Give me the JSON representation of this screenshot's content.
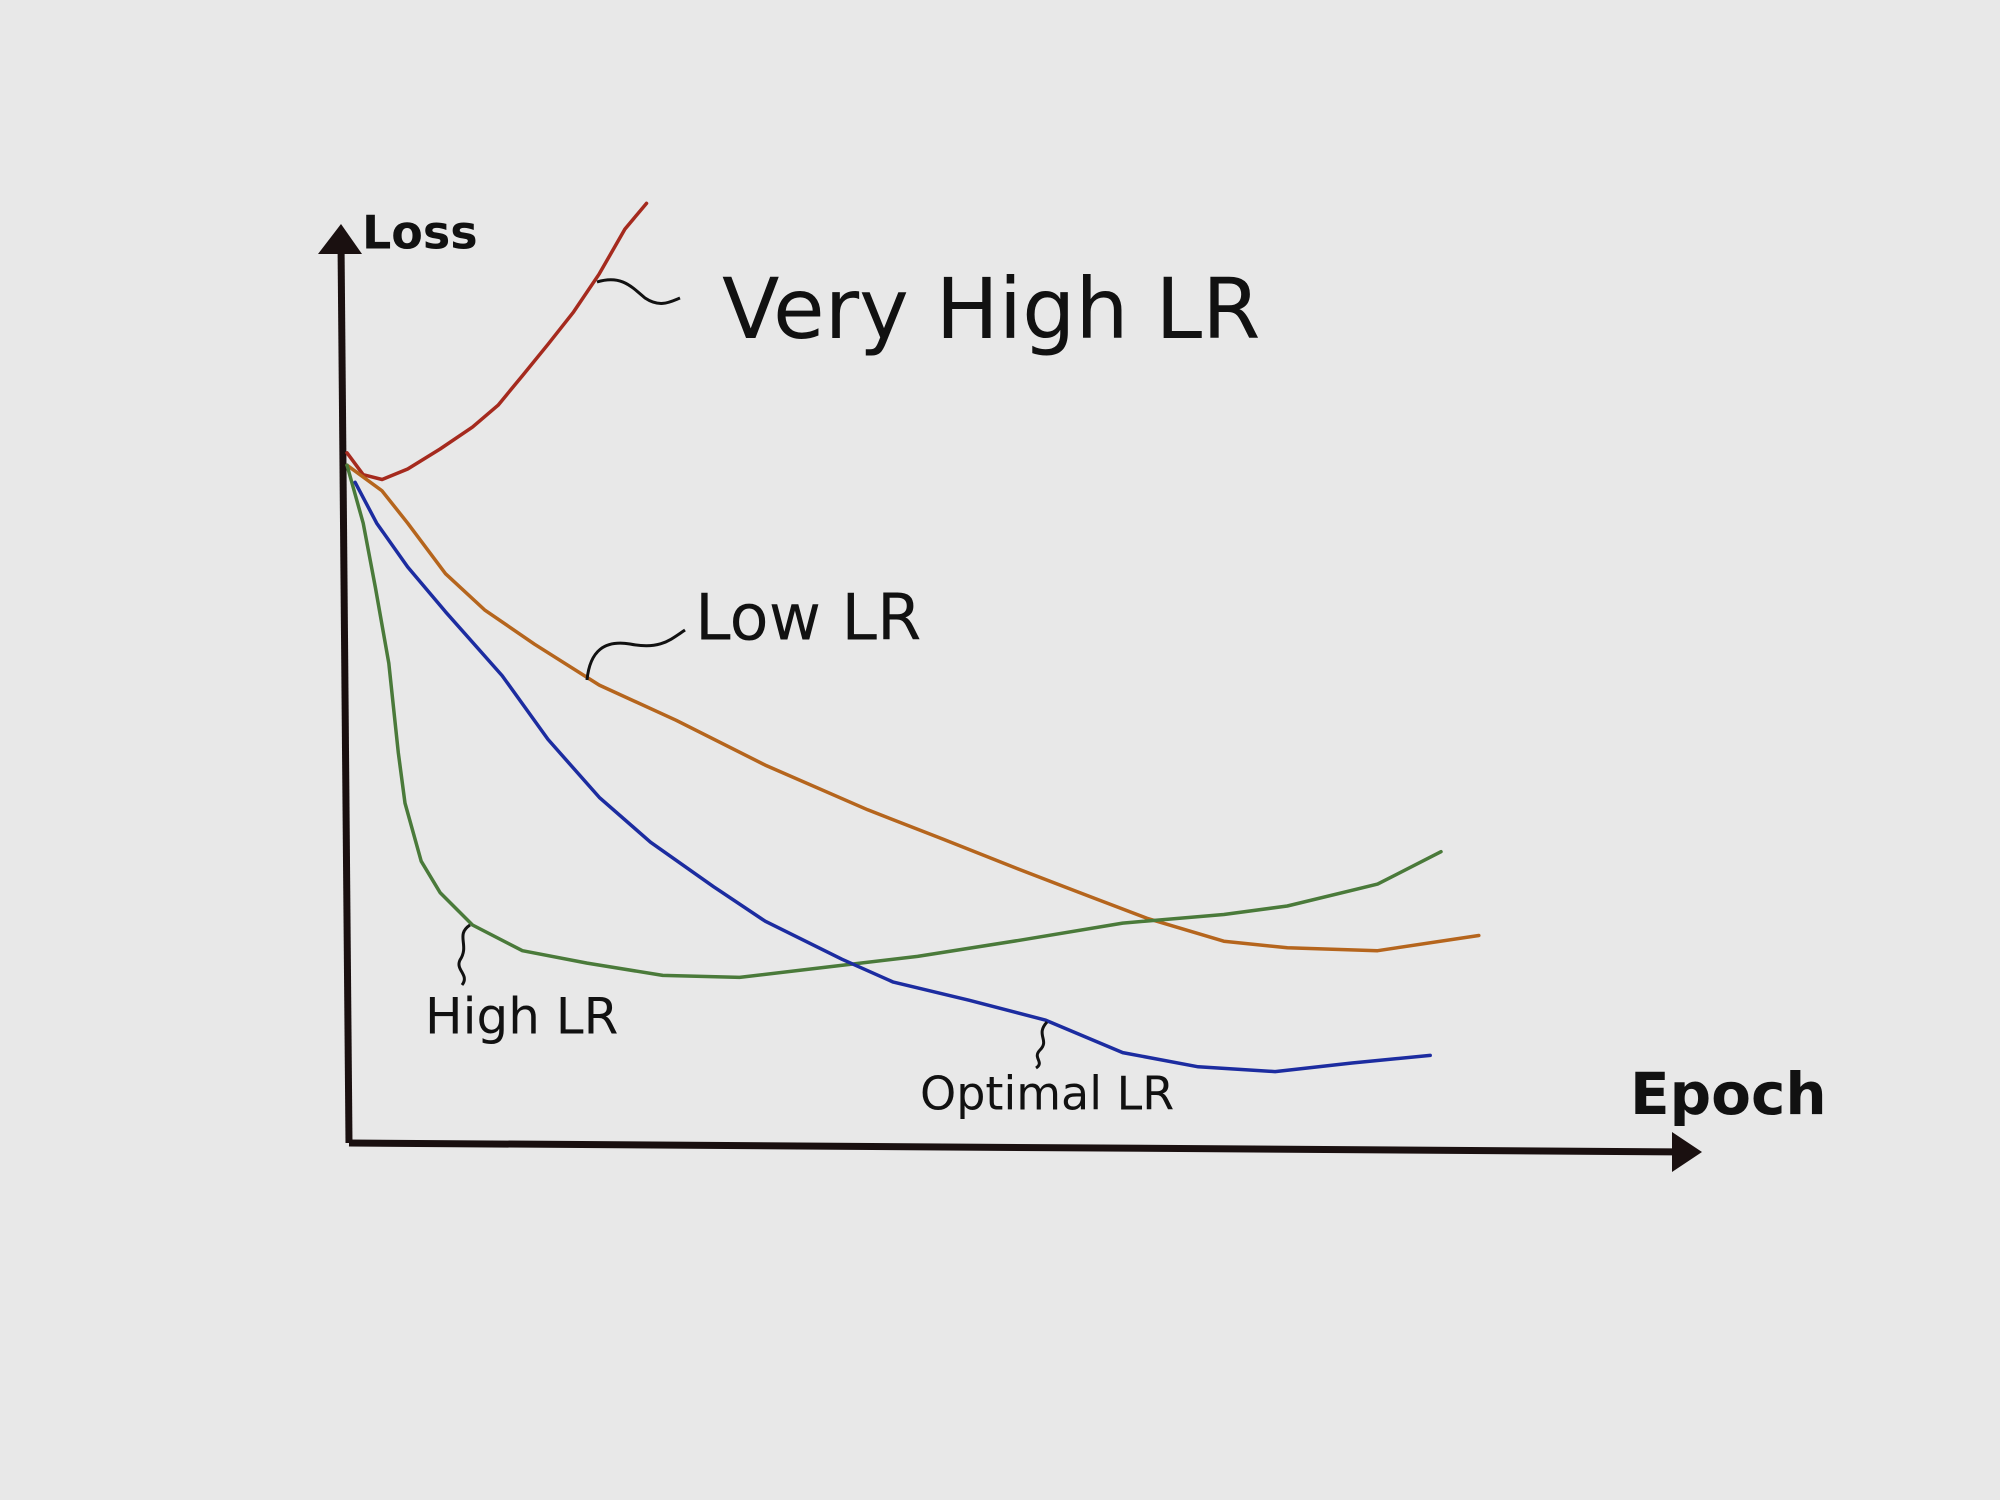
{
  "chart_data": {
    "type": "line",
    "x_label": "Epoch",
    "y_label": "Loss",
    "xlim": [
      0,
      100
    ],
    "ylim": [
      0,
      100
    ],
    "series": [
      {
        "name": "Very High LR",
        "color": "#a52a1e",
        "x": [
          0,
          1.2,
          2.6,
          4.5,
          6.9,
          9.3,
          11.2,
          13.0,
          14.9,
          16.8,
          18.7,
          20.6,
          22.2
        ],
        "values": [
          72.5,
          70.2,
          69.7,
          70.8,
          72.9,
          75.2,
          77.5,
          80.6,
          83.9,
          87.3,
          91.3,
          96.0,
          98.7
        ]
      },
      {
        "name": "Low LR",
        "color": "#b5651d",
        "x": [
          0,
          2.6,
          4.5,
          7.3,
          10.2,
          13.9,
          18.7,
          24.4,
          31.0,
          38.6,
          44.2,
          49.9,
          55.6,
          59.3,
          65.0,
          69.7,
          76.4,
          83.9
        ],
        "values": [
          71.2,
          68.5,
          65.1,
          59.8,
          56.0,
          52.4,
          48.1,
          44.4,
          39.7,
          35.0,
          31.9,
          28.7,
          25.6,
          23.6,
          21.2,
          20.5,
          20.2,
          21.8
        ]
      },
      {
        "name": "High LR",
        "color": "#4a7a3a",
        "x": [
          0,
          1.2,
          2.1,
          3.1,
          3.8,
          4.3,
          5.5,
          6.9,
          9.3,
          13.0,
          17.8,
          23.4,
          29.1,
          35.7,
          42.3,
          49.9,
          57.5,
          65.0,
          69.7,
          76.4,
          81.1
        ],
        "values": [
          71.2,
          65.1,
          58.4,
          50.4,
          41.0,
          35.7,
          29.6,
          26.3,
          22.9,
          20.2,
          18.9,
          17.6,
          17.4,
          18.5,
          19.6,
          21.3,
          23.1,
          24.0,
          24.9,
          27.2,
          30.6
        ]
      },
      {
        "name": "Optimal LR",
        "color": "#1c2ca0",
        "x": [
          0.6,
          2.2,
          4.5,
          7.3,
          11.5,
          14.9,
          18.7,
          22.5,
          27.2,
          31.0,
          36.7,
          40.5,
          46.1,
          51.8,
          57.5,
          63.1,
          68.8,
          74.5,
          80.3
        ],
        "values": [
          69.4,
          65.1,
          60.5,
          55.8,
          49.1,
          42.4,
          36.3,
          31.6,
          26.9,
          23.3,
          19.3,
          16.9,
          15.0,
          12.9,
          9.5,
          8.0,
          7.5,
          8.4,
          9.2
        ]
      }
    ]
  }
}
